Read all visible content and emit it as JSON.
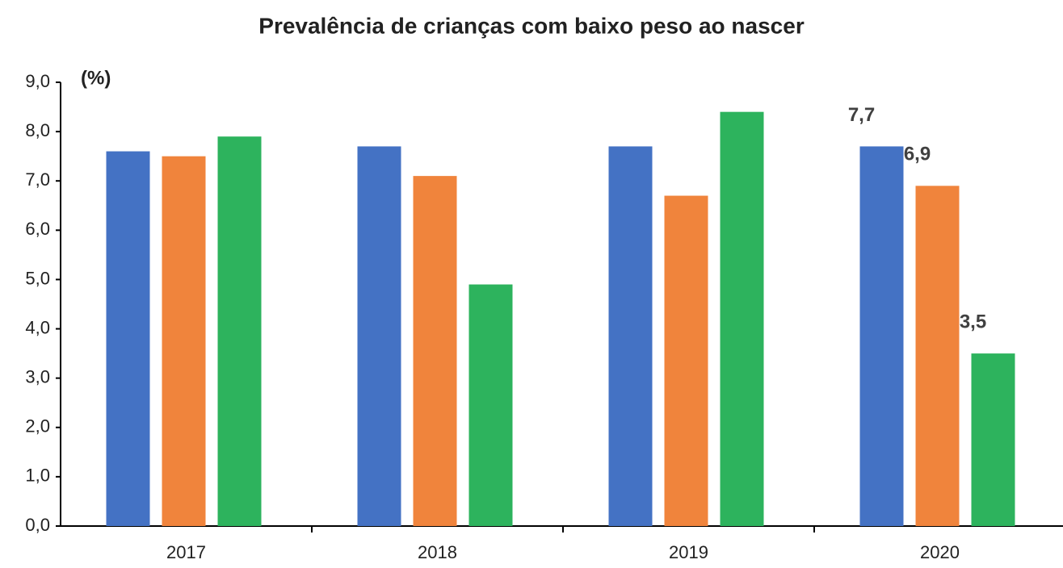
{
  "chart_data": {
    "type": "bar",
    "title": "Prevalência de crianças com baixo peso ao nascer",
    "y_label": "(%)",
    "categories": [
      "2017",
      "2018",
      "2019",
      "2020"
    ],
    "series": [
      {
        "color": "#4472c4",
        "values": [
          7.6,
          7.7,
          7.7,
          7.7
        ],
        "value_labels": [
          null,
          null,
          null,
          "7,7"
        ]
      },
      {
        "color": "#f0843c",
        "values": [
          7.5,
          7.1,
          6.7,
          6.9
        ],
        "value_labels": [
          null,
          null,
          null,
          "6,9"
        ]
      },
      {
        "color": "#2db35d",
        "values": [
          7.9,
          4.9,
          8.4,
          3.5
        ],
        "value_labels": [
          null,
          null,
          null,
          "3,5"
        ]
      }
    ],
    "ylim": [
      0,
      9
    ],
    "yticks": [
      {
        "value": 0,
        "label": "0,0"
      },
      {
        "value": 1,
        "label": "1,0"
      },
      {
        "value": 2,
        "label": "2,0"
      },
      {
        "value": 3,
        "label": "3,0"
      },
      {
        "value": 4,
        "label": "4,0"
      },
      {
        "value": 5,
        "label": "5,0"
      },
      {
        "value": 6,
        "label": "6,0"
      },
      {
        "value": 7,
        "label": "7,0"
      },
      {
        "value": 8,
        "label": "8,0"
      },
      {
        "value": 9,
        "label": "9,0"
      }
    ],
    "grid": false
  }
}
